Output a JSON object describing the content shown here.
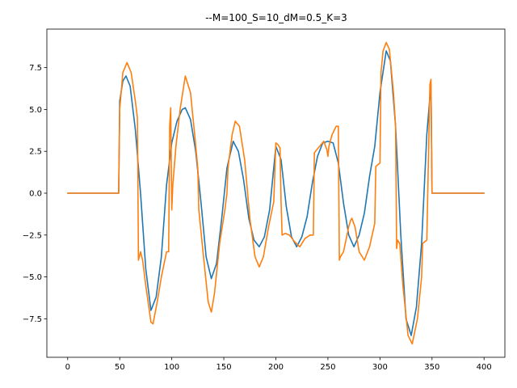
{
  "chart_data": {
    "type": "line",
    "title": "--M=100_S=10_dM=0.5_K=3",
    "xlabel": "",
    "ylabel": "",
    "xlim": [
      -20,
      420
    ],
    "ylim": [
      -9.8,
      9.8
    ],
    "xticks": [
      0,
      50,
      100,
      150,
      200,
      250,
      300,
      350,
      400
    ],
    "yticks": [
      -7.5,
      -5.0,
      -2.5,
      0.0,
      2.5,
      5.0,
      7.5
    ],
    "xtick_labels": [
      "0",
      "50",
      "100",
      "150",
      "200",
      "250",
      "300",
      "350",
      "400"
    ],
    "ytick_labels": [
      "−7.5",
      "−5.0",
      "−2.5",
      "0.0",
      "2.5",
      "5.0",
      "7.5"
    ],
    "grid": false,
    "legend": false,
    "series": [
      {
        "color": "#1f77b4",
        "x": [
          0,
          49,
          50,
          53,
          56,
          60,
          65,
          70,
          75,
          80,
          85,
          90,
          95,
          100,
          105,
          110,
          113,
          118,
          123,
          128,
          133,
          138,
          143,
          148,
          153,
          159,
          164,
          169,
          174,
          179,
          184,
          189,
          194,
          200,
          205,
          210,
          215,
          220,
          225,
          230,
          235,
          240,
          245,
          250,
          255,
          260,
          265,
          270,
          275,
          280,
          285,
          290,
          295,
          300,
          306,
          310,
          315,
          320,
          325,
          330,
          335,
          340,
          345,
          349,
          350,
          400
        ],
        "y": [
          0,
          0,
          5.5,
          6.7,
          7.0,
          6.4,
          3.8,
          0.0,
          -4.5,
          -7.0,
          -6.2,
          -3.8,
          0.5,
          3.0,
          4.3,
          5.0,
          5.1,
          4.4,
          2.5,
          -0.5,
          -3.8,
          -5.1,
          -4.2,
          -1.5,
          1.5,
          3.1,
          2.5,
          0.8,
          -1.5,
          -2.8,
          -3.2,
          -2.6,
          -1.0,
          2.8,
          2.0,
          -0.8,
          -2.6,
          -3.2,
          -2.6,
          -1.4,
          0.6,
          2.2,
          3.0,
          3.1,
          3.0,
          1.8,
          -0.6,
          -2.5,
          -3.2,
          -2.5,
          -1.2,
          1.0,
          2.8,
          6.0,
          8.5,
          7.9,
          4.0,
          -2.5,
          -7.5,
          -8.5,
          -6.8,
          -3.0,
          3.5,
          6.5,
          0,
          0
        ]
      },
      {
        "color": "#ff7f0e",
        "x": [
          0,
          49,
          50,
          53,
          57,
          61,
          65,
          67,
          68,
          70,
          72,
          75,
          80,
          82,
          86,
          90,
          95,
          97,
          98,
          99,
          100,
          101,
          104,
          108,
          113,
          118,
          122,
          125,
          126,
          130,
          135,
          138,
          141,
          146,
          151,
          153,
          154,
          158,
          161,
          165,
          170,
          175,
          180,
          184,
          188,
          193,
          198,
          200,
          202,
          204,
          205,
          206,
          209,
          213,
          218,
          223,
          228,
          233,
          236,
          237,
          238,
          242,
          246,
          249,
          250,
          251,
          254,
          258,
          260,
          261,
          262,
          265,
          270,
          272,
          273,
          276,
          280,
          285,
          290,
          295,
          296,
          298,
          300,
          301,
          303,
          306,
          309,
          313,
          315,
          316,
          317,
          319,
          322,
          327,
          331,
          336,
          340,
          341,
          345,
          348,
          349,
          350,
          400
        ],
        "y": [
          0,
          0,
          5.0,
          7.2,
          7.8,
          7.2,
          5.5,
          4.5,
          -4.0,
          -3.5,
          -4.0,
          -5.5,
          -7.7,
          -7.8,
          -6.5,
          -5.0,
          -3.5,
          -3.5,
          4.0,
          5.1,
          -1.0,
          0.5,
          2.8,
          5.0,
          7.0,
          6.0,
          3.5,
          1.5,
          -1.0,
          -3.5,
          -6.5,
          -7.1,
          -6.0,
          -3.0,
          -1.0,
          0.0,
          1.5,
          3.5,
          4.3,
          4.0,
          2.0,
          -1.5,
          -3.8,
          -4.4,
          -3.8,
          -2.0,
          -0.5,
          3.0,
          2.9,
          2.7,
          -0.5,
          -2.5,
          -2.4,
          -2.5,
          -2.9,
          -3.2,
          -2.7,
          -2.5,
          -2.5,
          2.4,
          2.5,
          2.8,
          3.1,
          2.6,
          2.2,
          2.8,
          3.5,
          4.0,
          4.0,
          -4.0,
          -3.8,
          -3.5,
          -2.0,
          -1.6,
          -1.5,
          -2.0,
          -3.5,
          -4.0,
          -3.2,
          -1.8,
          1.6,
          1.7,
          1.8,
          7.2,
          8.5,
          9.0,
          8.6,
          6.0,
          4.0,
          -3.3,
          -2.8,
          -3.0,
          -5.5,
          -8.5,
          -9.0,
          -7.5,
          -5.0,
          -3.0,
          -2.8,
          6.5,
          6.8,
          0,
          0
        ]
      }
    ]
  }
}
